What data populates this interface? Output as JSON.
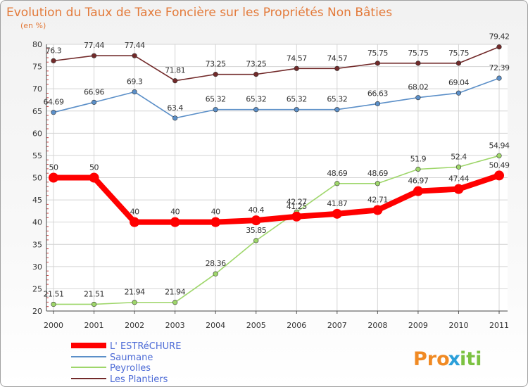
{
  "chart_data": {
    "type": "line",
    "title": "Evolution du Taux de Taxe Foncière sur les Propriétés Non Bâties",
    "subtitle": "(en %)",
    "x": [
      "2000",
      "2001",
      "2002",
      "2003",
      "2004",
      "2005",
      "2006",
      "2007",
      "2008",
      "2009",
      "2010",
      "2011"
    ],
    "ylim": [
      20,
      80
    ],
    "yticks": [
      20,
      25,
      30,
      35,
      40,
      45,
      50,
      55,
      60,
      65,
      70,
      75,
      80
    ],
    "grid": true,
    "legend_position": "bottom-left",
    "series": [
      {
        "name": "Les Plantiers",
        "color": "#722a2a",
        "values": [
          76.3,
          77.44,
          77.44,
          71.81,
          73.25,
          73.25,
          74.57,
          74.57,
          75.75,
          75.75,
          75.75,
          79.42
        ],
        "labels": [
          "76.3",
          "77.44",
          "77.44",
          "71.81",
          "73.25",
          "73.25",
          "74.57",
          "74.57",
          "75.75",
          "75.75",
          "75.75",
          "79.42"
        ]
      },
      {
        "name": "Saumane",
        "color": "#5b8fc8",
        "values": [
          64.69,
          66.96,
          69.3,
          63.4,
          65.32,
          65.32,
          65.32,
          65.32,
          66.63,
          68.02,
          69.04,
          72.39
        ],
        "labels": [
          "64.69",
          "66.96",
          "69.3",
          "63.4",
          "65.32",
          "65.32",
          "65.32",
          "65.32",
          "66.63",
          "68.02",
          "69.04",
          "72.39"
        ]
      },
      {
        "name": "Peyrolles",
        "color": "#9ed66a",
        "values": [
          21.51,
          21.51,
          21.94,
          21.94,
          28.36,
          35.85,
          42.27,
          48.69,
          48.69,
          51.9,
          52.4,
          54.94
        ],
        "labels": [
          "21.51",
          "21.51",
          "21.94",
          "21.94",
          "28.36",
          "35.85",
          "42.27",
          "48.69",
          "48.69",
          "51.9",
          "52.4",
          "54.94"
        ]
      },
      {
        "name": "L' ESTRéCHURE",
        "color": "#ff0000",
        "values": [
          50,
          50,
          40,
          40,
          40,
          40.4,
          41.25,
          41.87,
          42.71,
          46.97,
          47.44,
          50.49
        ],
        "labels": [
          "50",
          "50",
          "40",
          "40",
          "40",
          "40.4",
          "41.25",
          "41.87",
          "42.71",
          "46.97",
          "47.44",
          "50.49"
        ]
      }
    ],
    "legend": [
      "L' ESTRéCHURE",
      "Saumane",
      "Peyrolles",
      "Les Plantiers"
    ]
  },
  "logo": {
    "parts": [
      "Pro",
      "x",
      "iti"
    ],
    "colors": [
      "#f08a24",
      "#2b9fd9",
      "#7cc242"
    ]
  }
}
